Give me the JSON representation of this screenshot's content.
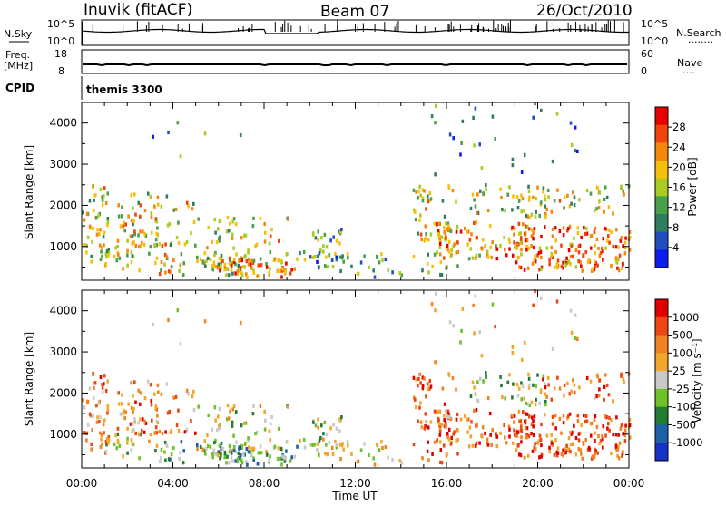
{
  "header": {
    "station": "Inuvik (fitACF)",
    "beam": "Beam 07",
    "date": "26/Oct/2010"
  },
  "noise_panel": {
    "left_label": "N.Sky",
    "left_ticks": [
      "10^5",
      "10^0"
    ],
    "right_ticks": [
      "10^5",
      "10^0"
    ],
    "right_label": "N.Search",
    "right_legend": "........"
  },
  "freq_panel": {
    "label_top": "Freq.",
    "label_unit": "[MHz]",
    "left_ticks": [
      "18",
      "8"
    ],
    "right_ticks": [
      "60",
      "0"
    ],
    "right_label": "Nave",
    "right_legend": "...."
  },
  "cpid": {
    "label": "CPID",
    "value": "themis 3300"
  },
  "colors": {
    "power_scale": [
      "#0a1cf0",
      "#2050c0",
      "#2f7c5e",
      "#4aa04a",
      "#a8cc22",
      "#f4c00c",
      "#f5870d",
      "#f0440a",
      "#e80000"
    ],
    "velocity_scale": [
      "#1532c8",
      "#1e5fa8",
      "#237a32",
      "#6cc226",
      "#c9c9c9",
      "#f2a62a",
      "#f18320",
      "#ed4513",
      "#e00000"
    ]
  },
  "chart_data": [
    {
      "type": "heatmap",
      "parameter": "Power",
      "ylabel": "Slant Range [km]",
      "ylim": [
        180,
        4500
      ],
      "xlim_hours": [
        0,
        24
      ],
      "colorbar_label": "Power [dB]",
      "colorbar_range": [
        0,
        32
      ],
      "colorbar_ticks": [
        "28",
        "24",
        "20",
        "16",
        "12",
        "8",
        "4"
      ],
      "y_ticks": [
        "4000",
        "3000",
        "2000",
        "1000"
      ]
    },
    {
      "type": "heatmap",
      "parameter": "Velocity",
      "ylabel": "Slant Range [km]",
      "ylim": [
        180,
        4500
      ],
      "xlim_hours": [
        0,
        24
      ],
      "xlabel": "Time UT",
      "colorbar_label": "Velocity [m s⁻¹]",
      "colorbar_ticks": [
        "1000",
        "500",
        "100",
        "25",
        "-25",
        "-100",
        "-500",
        "-1000"
      ],
      "y_ticks": [
        "4000",
        "3000",
        "2000",
        "1000"
      ],
      "x_ticks": [
        "00:00",
        "04:00",
        "08:00",
        "12:00",
        "16:00",
        "20:00",
        "00:00"
      ]
    }
  ]
}
